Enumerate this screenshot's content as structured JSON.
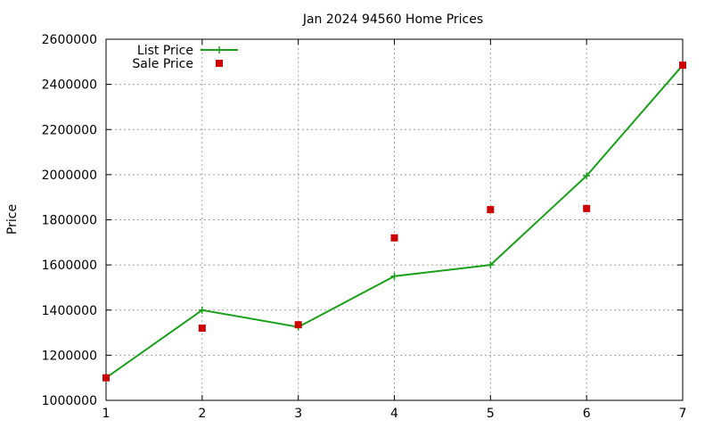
{
  "chart_data": {
    "type": "line",
    "title": "Jan 2024 94560 Home Prices",
    "xlabel": "",
    "ylabel": "Price",
    "xlim": [
      1,
      7
    ],
    "ylim": [
      1000000,
      2600000
    ],
    "x_ticks": [
      "1",
      "2",
      "3",
      "4",
      "5",
      "6",
      "7"
    ],
    "y_ticks": [
      "1000000",
      "1200000",
      "1400000",
      "1600000",
      "1800000",
      "2000000",
      "2200000",
      "2400000",
      "2600000"
    ],
    "grid": true,
    "legend_position": "top-left",
    "series": [
      {
        "name": "List Price",
        "style": "linespoints",
        "marker": "plus",
        "color": "#1aa01a",
        "x": [
          1,
          2,
          3,
          4,
          5,
          6,
          7
        ],
        "y": [
          1100000,
          1400000,
          1325000,
          1550000,
          1600000,
          1995000,
          2485000
        ]
      },
      {
        "name": "Sale Price",
        "style": "points",
        "marker": "square",
        "color": "#cc0000",
        "x": [
          1,
          2,
          3,
          4,
          5,
          6,
          7
        ],
        "y": [
          1100000,
          1320000,
          1335000,
          1720000,
          1845000,
          1850000,
          2485000
        ]
      }
    ]
  }
}
